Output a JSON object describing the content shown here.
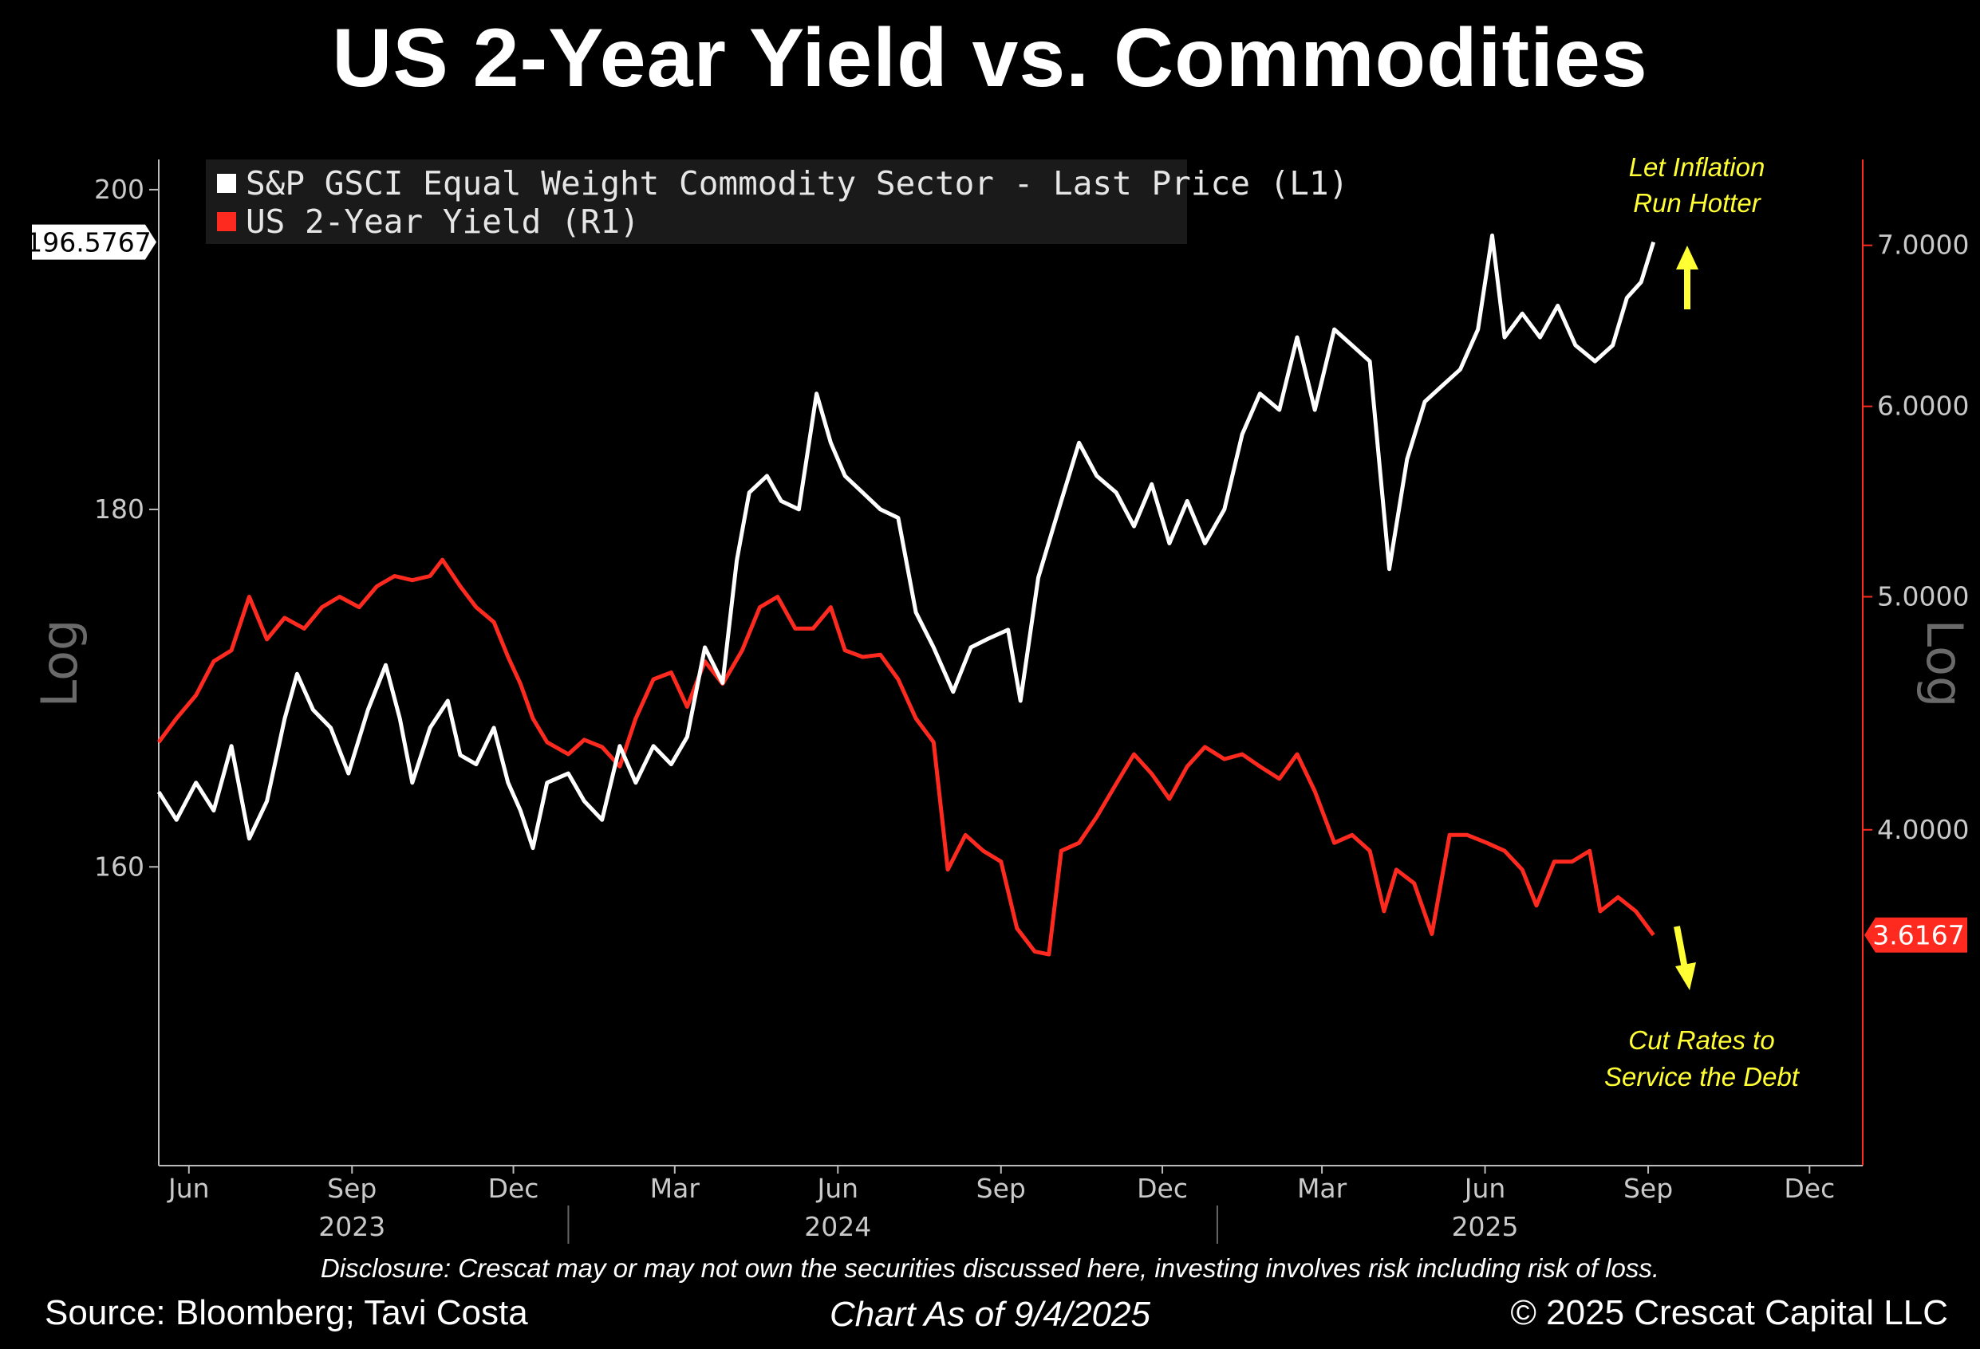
{
  "title": "US 2-Year Yield vs. Commodities",
  "footer": {
    "disclosure": "Disclosure: Crescat may or may not own the securities discussed here, investing involves risk including risk of loss.",
    "source": "Source: Bloomberg; Tavi Costa",
    "as_of": "Chart As of 9/4/2025",
    "copyright": "© 2025 Crescat Capital LLC"
  },
  "colors": {
    "commodity": "#ffffff",
    "yield": "#ff2a1f",
    "annotation": "#ffff33",
    "background": "#000000"
  },
  "chart_data": {
    "type": "line",
    "title": "US 2-Year Yield vs. Commodities",
    "legend_position": "top-left",
    "grid": false,
    "x_range": [
      "2023-05-15",
      "2025-12-31"
    ],
    "x_ticks": [
      {
        "date": "2023-06-01",
        "label": "Jun"
      },
      {
        "date": "2023-09-01",
        "label": "Sep"
      },
      {
        "date": "2023-12-01",
        "label": "Dec"
      },
      {
        "date": "2024-03-01",
        "label": "Mar"
      },
      {
        "date": "2024-06-01",
        "label": "Jun"
      },
      {
        "date": "2024-09-01",
        "label": "Sep"
      },
      {
        "date": "2024-12-01",
        "label": "Dec"
      },
      {
        "date": "2025-03-01",
        "label": "Mar"
      },
      {
        "date": "2025-06-01",
        "label": "Jun"
      },
      {
        "date": "2025-09-01",
        "label": "Sep"
      },
      {
        "date": "2025-12-01",
        "label": "Dec"
      }
    ],
    "year_labels": [
      {
        "date": "2023-09-01",
        "label": "2023"
      },
      {
        "date": "2024-06-01",
        "label": "2024"
      },
      {
        "date": "2025-06-01",
        "label": "2025"
      }
    ],
    "year_dividers": [
      "2024-01-01",
      "2025-01-01"
    ],
    "left_axis": {
      "label": "Log",
      "scale": "log",
      "range": [
        145,
        202
      ],
      "ticks": [
        160,
        180,
        200
      ],
      "tick_labels": [
        "160",
        "180",
        "200"
      ]
    },
    "right_axis": {
      "label": "Log",
      "scale": "log",
      "range": [
        2.9,
        7.6
      ],
      "ticks": [
        4,
        5,
        6,
        7
      ],
      "tick_labels": [
        "4.0000",
        "5.0000",
        "6.0000",
        "7.0000"
      ]
    },
    "series": [
      {
        "name": "S&P GSCI Equal Weight Commodity Sector - Last Price (L1)",
        "axis": "left",
        "last_value": 196.5767,
        "last_label": "196.5767",
        "points": [
          [
            "2023-05-15",
            164.0
          ],
          [
            "2023-05-25",
            162.5
          ],
          [
            "2023-06-05",
            164.5
          ],
          [
            "2023-06-15",
            163.0
          ],
          [
            "2023-06-25",
            166.5
          ],
          [
            "2023-07-05",
            161.5
          ],
          [
            "2023-07-15",
            163.5
          ],
          [
            "2023-07-25",
            168.0
          ],
          [
            "2023-08-01",
            170.5
          ],
          [
            "2023-08-10",
            168.5
          ],
          [
            "2023-08-20",
            167.5
          ],
          [
            "2023-08-30",
            165.0
          ],
          [
            "2023-09-10",
            168.5
          ],
          [
            "2023-09-20",
            171.0
          ],
          [
            "2023-09-28",
            168.0
          ],
          [
            "2023-10-05",
            164.5
          ],
          [
            "2023-10-15",
            167.5
          ],
          [
            "2023-10-25",
            169.0
          ],
          [
            "2023-11-01",
            166.0
          ],
          [
            "2023-11-10",
            165.5
          ],
          [
            "2023-11-20",
            167.5
          ],
          [
            "2023-11-28",
            164.5
          ],
          [
            "2023-12-05",
            163.0
          ],
          [
            "2023-12-12",
            161.0
          ],
          [
            "2023-12-20",
            164.5
          ],
          [
            "2024-01-01",
            165.0
          ],
          [
            "2024-01-10",
            163.5
          ],
          [
            "2024-01-20",
            162.5
          ],
          [
            "2024-01-30",
            166.5
          ],
          [
            "2024-02-08",
            164.5
          ],
          [
            "2024-02-18",
            166.5
          ],
          [
            "2024-02-28",
            165.5
          ],
          [
            "2024-03-08",
            167.0
          ],
          [
            "2024-03-18",
            172.0
          ],
          [
            "2024-03-28",
            170.0
          ],
          [
            "2024-04-05",
            177.0
          ],
          [
            "2024-04-12",
            181.0
          ],
          [
            "2024-04-22",
            182.0
          ],
          [
            "2024-04-30",
            180.5
          ],
          [
            "2024-05-10",
            180.0
          ],
          [
            "2024-05-20",
            187.0
          ],
          [
            "2024-05-28",
            184.0
          ],
          [
            "2024-06-05",
            182.0
          ],
          [
            "2024-06-15",
            181.0
          ],
          [
            "2024-06-25",
            180.0
          ],
          [
            "2024-07-05",
            179.5
          ],
          [
            "2024-07-15",
            174.0
          ],
          [
            "2024-07-25",
            172.0
          ],
          [
            "2024-08-05",
            169.5
          ],
          [
            "2024-08-15",
            172.0
          ],
          [
            "2024-08-25",
            172.5
          ],
          [
            "2024-09-05",
            173.0
          ],
          [
            "2024-09-12",
            169.0
          ],
          [
            "2024-09-22",
            176.0
          ],
          [
            "2024-10-05",
            180.5
          ],
          [
            "2024-10-15",
            184.0
          ],
          [
            "2024-10-25",
            182.0
          ],
          [
            "2024-11-05",
            181.0
          ],
          [
            "2024-11-15",
            179.0
          ],
          [
            "2024-11-25",
            181.5
          ],
          [
            "2024-12-05",
            178.0
          ],
          [
            "2024-12-15",
            180.5
          ],
          [
            "2024-12-25",
            178.0
          ],
          [
            "2025-01-05",
            180.0
          ],
          [
            "2025-01-15",
            184.5
          ],
          [
            "2025-01-25",
            187.0
          ],
          [
            "2025-02-05",
            186.0
          ],
          [
            "2025-02-15",
            190.5
          ],
          [
            "2025-02-25",
            186.0
          ],
          [
            "2025-03-08",
            191.0
          ],
          [
            "2025-03-18",
            190.0
          ],
          [
            "2025-03-28",
            189.0
          ],
          [
            "2025-04-08",
            176.5
          ],
          [
            "2025-04-18",
            183.0
          ],
          [
            "2025-04-28",
            186.5
          ],
          [
            "2025-05-08",
            187.5
          ],
          [
            "2025-05-18",
            188.5
          ],
          [
            "2025-05-28",
            191.0
          ],
          [
            "2025-06-05",
            197.0
          ],
          [
            "2025-06-12",
            190.5
          ],
          [
            "2025-06-22",
            192.0
          ],
          [
            "2025-07-02",
            190.5
          ],
          [
            "2025-07-12",
            192.5
          ],
          [
            "2025-07-22",
            190.0
          ],
          [
            "2025-08-02",
            189.0
          ],
          [
            "2025-08-12",
            190.0
          ],
          [
            "2025-08-20",
            193.0
          ],
          [
            "2025-08-28",
            194.0
          ],
          [
            "2025-09-04",
            196.5767
          ]
        ]
      },
      {
        "name": "US 2-Year Yield (R1)",
        "axis": "right",
        "last_value": 3.6167,
        "last_label": "3.6167",
        "points": [
          [
            "2023-05-15",
            4.35
          ],
          [
            "2023-05-25",
            4.45
          ],
          [
            "2023-06-05",
            4.55
          ],
          [
            "2023-06-15",
            4.7
          ],
          [
            "2023-06-25",
            4.75
          ],
          [
            "2023-07-05",
            5.0
          ],
          [
            "2023-07-15",
            4.8
          ],
          [
            "2023-07-25",
            4.9
          ],
          [
            "2023-08-05",
            4.85
          ],
          [
            "2023-08-15",
            4.95
          ],
          [
            "2023-08-25",
            5.0
          ],
          [
            "2023-09-05",
            4.95
          ],
          [
            "2023-09-15",
            5.05
          ],
          [
            "2023-09-25",
            5.1
          ],
          [
            "2023-10-05",
            5.08
          ],
          [
            "2023-10-15",
            5.1
          ],
          [
            "2023-10-22",
            5.18
          ],
          [
            "2023-11-01",
            5.05
          ],
          [
            "2023-11-10",
            4.95
          ],
          [
            "2023-11-20",
            4.88
          ],
          [
            "2023-11-28",
            4.72
          ],
          [
            "2023-12-05",
            4.6
          ],
          [
            "2023-12-12",
            4.45
          ],
          [
            "2023-12-20",
            4.35
          ],
          [
            "2024-01-01",
            4.3
          ],
          [
            "2024-01-10",
            4.36
          ],
          [
            "2024-01-20",
            4.33
          ],
          [
            "2024-01-30",
            4.25
          ],
          [
            "2024-02-08",
            4.45
          ],
          [
            "2024-02-18",
            4.62
          ],
          [
            "2024-02-28",
            4.65
          ],
          [
            "2024-03-08",
            4.5
          ],
          [
            "2024-03-18",
            4.7
          ],
          [
            "2024-03-28",
            4.6
          ],
          [
            "2024-04-08",
            4.75
          ],
          [
            "2024-04-18",
            4.95
          ],
          [
            "2024-04-28",
            5.0
          ],
          [
            "2024-05-08",
            4.85
          ],
          [
            "2024-05-18",
            4.85
          ],
          [
            "2024-05-28",
            4.95
          ],
          [
            "2024-06-05",
            4.75
          ],
          [
            "2024-06-15",
            4.72
          ],
          [
            "2024-06-25",
            4.73
          ],
          [
            "2024-07-05",
            4.62
          ],
          [
            "2024-07-15",
            4.45
          ],
          [
            "2024-07-25",
            4.35
          ],
          [
            "2024-08-02",
            3.85
          ],
          [
            "2024-08-12",
            3.98
          ],
          [
            "2024-08-22",
            3.92
          ],
          [
            "2024-09-01",
            3.88
          ],
          [
            "2024-09-10",
            3.64
          ],
          [
            "2024-09-20",
            3.56
          ],
          [
            "2024-09-28",
            3.55
          ],
          [
            "2024-10-05",
            3.92
          ],
          [
            "2024-10-15",
            3.95
          ],
          [
            "2024-10-25",
            4.05
          ],
          [
            "2024-11-05",
            4.18
          ],
          [
            "2024-11-15",
            4.3
          ],
          [
            "2024-11-25",
            4.22
          ],
          [
            "2024-12-05",
            4.12
          ],
          [
            "2024-12-15",
            4.25
          ],
          [
            "2024-12-25",
            4.33
          ],
          [
            "2025-01-05",
            4.28
          ],
          [
            "2025-01-15",
            4.3
          ],
          [
            "2025-01-25",
            4.25
          ],
          [
            "2025-02-05",
            4.2
          ],
          [
            "2025-02-15",
            4.3
          ],
          [
            "2025-02-25",
            4.15
          ],
          [
            "2025-03-08",
            3.95
          ],
          [
            "2025-03-18",
            3.98
          ],
          [
            "2025-03-28",
            3.92
          ],
          [
            "2025-04-05",
            3.7
          ],
          [
            "2025-04-12",
            3.85
          ],
          [
            "2025-04-22",
            3.8
          ],
          [
            "2025-05-02",
            3.62
          ],
          [
            "2025-05-12",
            3.98
          ],
          [
            "2025-05-22",
            3.98
          ],
          [
            "2025-06-02",
            3.95
          ],
          [
            "2025-06-12",
            3.92
          ],
          [
            "2025-06-22",
            3.85
          ],
          [
            "2025-06-30",
            3.72
          ],
          [
            "2025-07-10",
            3.88
          ],
          [
            "2025-07-20",
            3.88
          ],
          [
            "2025-07-30",
            3.92
          ],
          [
            "2025-08-05",
            3.7
          ],
          [
            "2025-08-15",
            3.75
          ],
          [
            "2025-08-25",
            3.7
          ],
          [
            "2025-09-04",
            3.6167
          ]
        ]
      }
    ],
    "annotations": [
      {
        "text_lines": [
          "Let Inflation",
          "Run Hotter"
        ],
        "arrow": "up",
        "series": "S&P GSCI Equal Weight Commodity Sector - Last Price (L1)"
      },
      {
        "text_lines": [
          "Cut Rates to",
          "Service the Debt"
        ],
        "arrow": "down",
        "series": "US 2-Year Yield (R1)"
      }
    ]
  }
}
